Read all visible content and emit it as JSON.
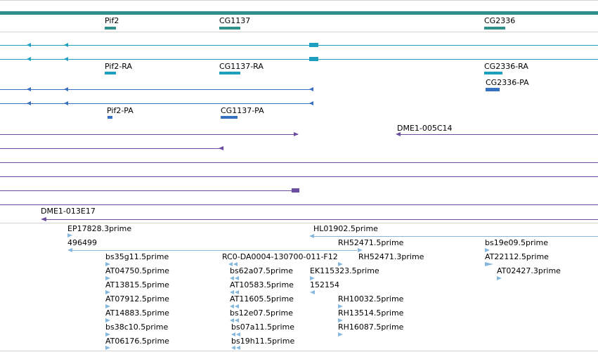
{
  "colors": {
    "teal": "#2f8f8b",
    "cyan": "#1e9fbf",
    "blue": "#3870c0",
    "purple": "#6b4ea0",
    "lightblue": "#86b8de",
    "separator": "#d4d4d4"
  },
  "gene_track": {
    "genes": [
      "Pif2",
      "CG1137",
      "CG2336"
    ]
  },
  "transcript_track": {
    "transcripts_ra": [
      "Pif2-RA",
      "CG1137-RA",
      "CG2336-RA"
    ],
    "transcripts_pa": [
      "CG2336-PA",
      "Pif2-PA",
      "CG1137-PA"
    ]
  },
  "clone_track": {
    "clones": [
      "DME1-005C14",
      "DME1-013E17"
    ]
  },
  "est_track": {
    "ests": [
      "EP17828.3prime",
      "HL01902.5prime",
      "496499",
      "RH52471.5prime",
      "bs19e09.5prime",
      "bs35g11.5prime",
      "RC0-DA0004-130700-011-F12",
      "RH52471.3prime",
      "AT22112.5prime",
      "AT04750.5prime",
      "bs62a07.5prime",
      "EK115323.5prime",
      "AT02427.3prime",
      "AT13815.5prime",
      "AT10583.5prime",
      "152154",
      "AT07912.5prime",
      "AT11605.5prime",
      "RH10032.5prime",
      "AT14883.5prime",
      "bs12e07.5prime",
      "RH13514.5prime",
      "bs38c10.5prime",
      "bs07a11.5prime",
      "RH16087.5prime",
      "AT06176.5prime",
      "bs19h11.5prime"
    ]
  }
}
